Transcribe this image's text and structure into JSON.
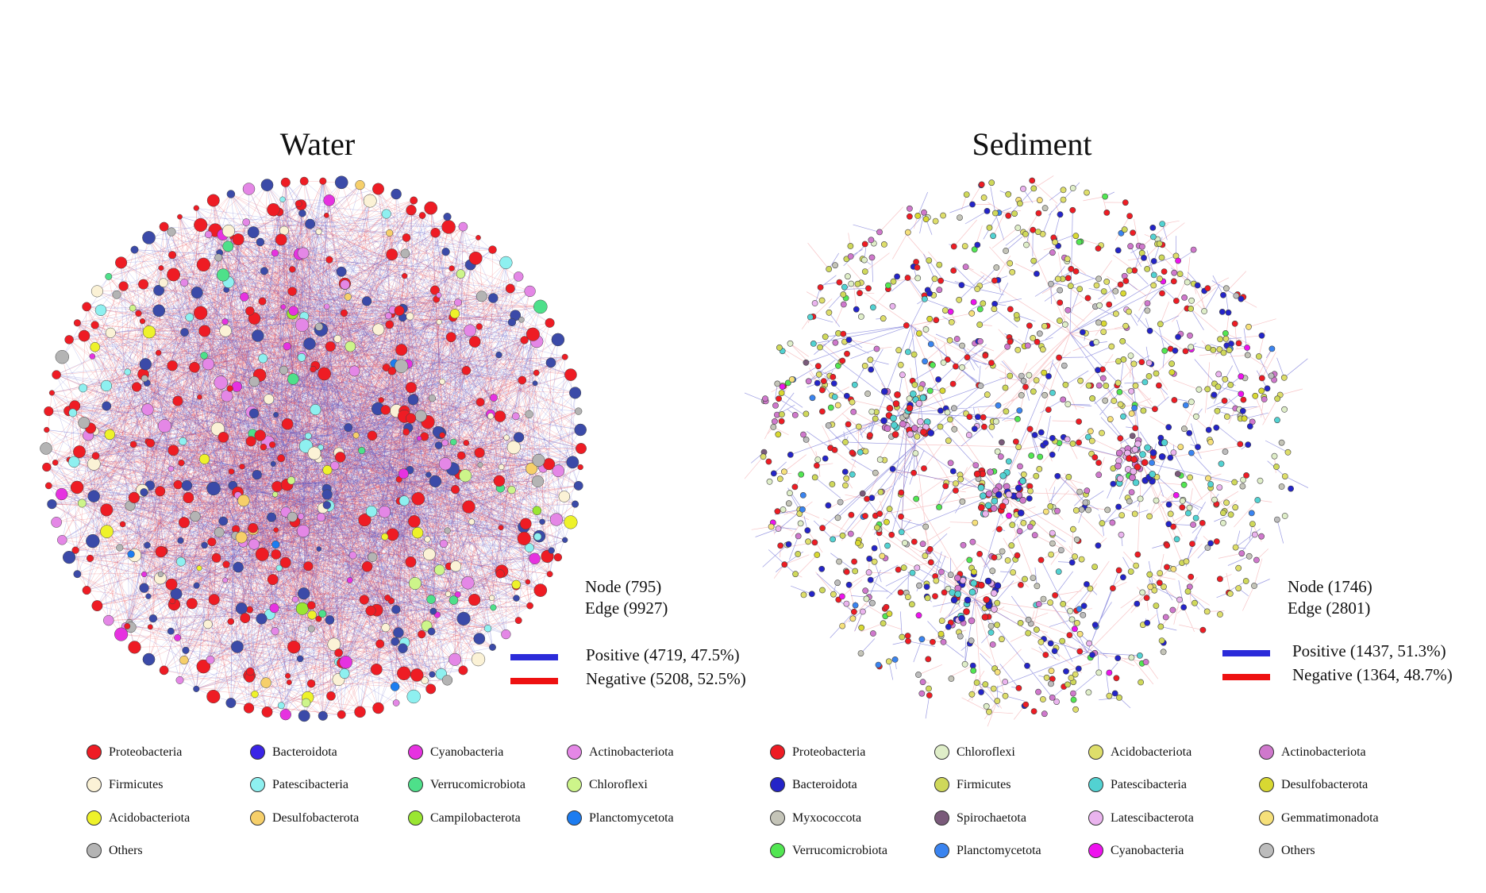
{
  "water": {
    "title": "Water",
    "node_text": "Node (795)",
    "edge_text": "Edge (9927)",
    "positive_label": "Positive (4719, 47.5%)",
    "negative_label": "Negative (5208, 52.5%)",
    "positive_color": "#2b2bd9",
    "negative_color": "#ee1111",
    "legend": [
      {
        "label": "Proteobacteria",
        "color": "#ee1c24"
      },
      {
        "label": "Bacteroidota",
        "color": "#3a24e6"
      },
      {
        "label": "Cyanobacteria",
        "color": "#e632e0"
      },
      {
        "label": "Actinobacteriota",
        "color": "#e487e6"
      },
      {
        "label": "Firmicutes",
        "color": "#fbf2d6"
      },
      {
        "label": "Patescibacteria",
        "color": "#8ef0f0"
      },
      {
        "label": "Verrucomicrobiota",
        "color": "#4ee08a"
      },
      {
        "label": "Chloroflexi",
        "color": "#cdf58a"
      },
      {
        "label": "Acidobacteriota",
        "color": "#eef22a"
      },
      {
        "label": "Desulfobacterota",
        "color": "#f6cf6a"
      },
      {
        "label": "Campilobacterota",
        "color": "#9ae632"
      },
      {
        "label": "Planctomycetota",
        "color": "#1c7cf0"
      },
      {
        "label": "Others",
        "color": "#b4b4b4"
      }
    ]
  },
  "sediment": {
    "title": "Sediment",
    "node_text": "Node (1746)",
    "edge_text": "Edge (2801)",
    "positive_label": "Positive (1437, 51.3%)",
    "negative_label": "Negative (1364, 48.7%)",
    "positive_color": "#2b2bd9",
    "negative_color": "#ee1111",
    "legend": [
      {
        "label": "Proteobacteria",
        "color": "#ee1c24"
      },
      {
        "label": "Chloroflexi",
        "color": "#dfeec8"
      },
      {
        "label": "Acidobacteriota",
        "color": "#dede6a"
      },
      {
        "label": "Actinobacteriota",
        "color": "#cf78cc"
      },
      {
        "label": "Bacteroidota",
        "color": "#2424c8"
      },
      {
        "label": "Firmicutes",
        "color": "#cfd85a"
      },
      {
        "label": "Patescibacteria",
        "color": "#52d2d2"
      },
      {
        "label": "Desulfobacterota",
        "color": "#d8d832"
      },
      {
        "label": "Myxococcota",
        "color": "#c4c4b8"
      },
      {
        "label": "Spirochaetota",
        "color": "#7a5a7a"
      },
      {
        "label": "Latescibacterota",
        "color": "#eab4ee"
      },
      {
        "label": "Gemmatimonadota",
        "color": "#f6e07a"
      },
      {
        "label": "Verrucomicrobiota",
        "color": "#52e652"
      },
      {
        "label": "Planctomycetota",
        "color": "#3a84f0"
      },
      {
        "label": "Cyanobacteria",
        "color": "#ee12ee"
      },
      {
        "label": "Others",
        "color": "#bcbcbc"
      }
    ]
  }
}
